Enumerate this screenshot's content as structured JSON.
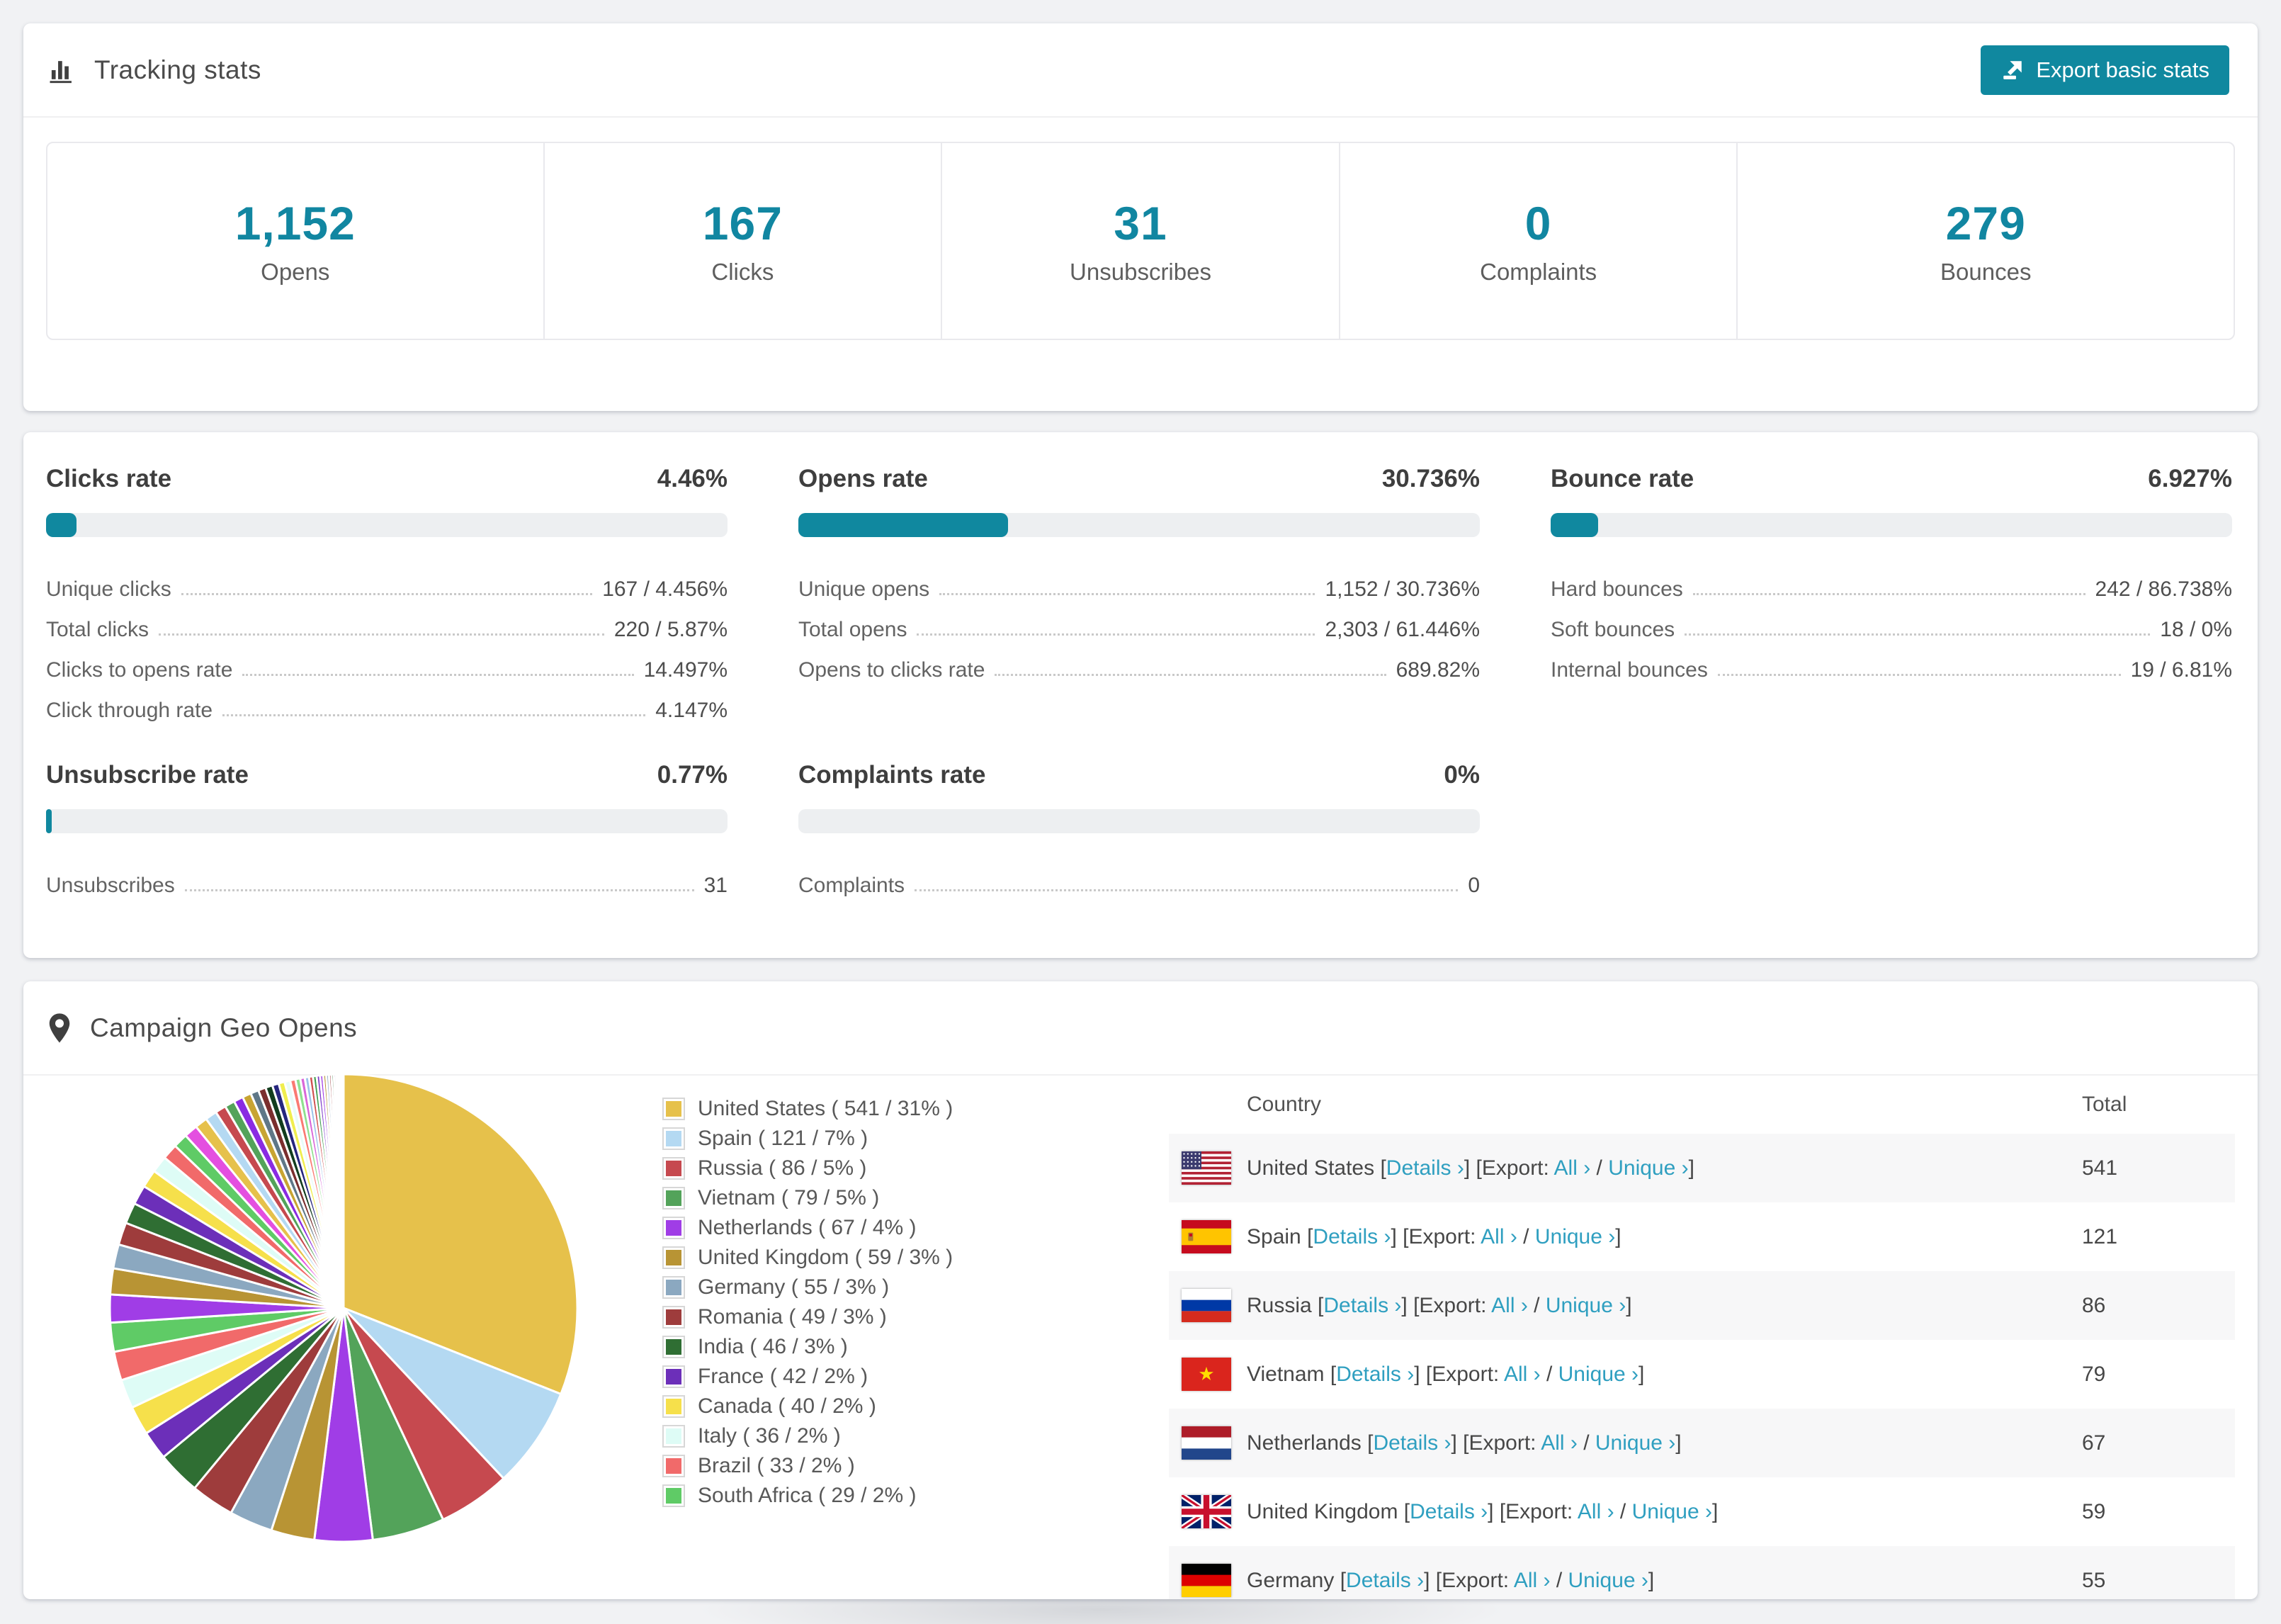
{
  "theme": {
    "accent": "#10889f",
    "stat_number_color": "#1186a1",
    "link_color": "#2f9fc0"
  },
  "tracking": {
    "title": "Tracking stats",
    "export_button_label": "Export basic stats",
    "stats": [
      {
        "value": "1,152",
        "label": "Opens"
      },
      {
        "value": "167",
        "label": "Clicks"
      },
      {
        "value": "31",
        "label": "Unsubscribes"
      },
      {
        "value": "0",
        "label": "Complaints"
      },
      {
        "value": "279",
        "label": "Bounces"
      }
    ]
  },
  "rates": [
    {
      "title": "Clicks rate",
      "value": "4.46%",
      "percent": 4.46,
      "rows": [
        {
          "label": "Unique clicks",
          "value": "167 / 4.456%"
        },
        {
          "label": "Total clicks",
          "value": "220 / 5.87%"
        },
        {
          "label": "Clicks to opens rate",
          "value": "14.497%"
        },
        {
          "label": "Click through rate",
          "value": "4.147%"
        }
      ]
    },
    {
      "title": "Opens rate",
      "value": "30.736%",
      "percent": 30.736,
      "rows": [
        {
          "label": "Unique opens",
          "value": "1,152 / 30.736%"
        },
        {
          "label": "Total opens",
          "value": "2,303 / 61.446%"
        },
        {
          "label": "Opens to clicks rate",
          "value": "689.82%"
        }
      ]
    },
    {
      "title": "Bounce rate",
      "value": "6.927%",
      "percent": 6.927,
      "rows": [
        {
          "label": "Hard bounces",
          "value": "242 / 86.738%"
        },
        {
          "label": "Soft bounces",
          "value": "18 / 0%"
        },
        {
          "label": "Internal bounces",
          "value": "19 / 6.81%"
        }
      ]
    },
    {
      "title": "Unsubscribe rate",
      "value": "0.77%",
      "percent": 0.77,
      "rows": [
        {
          "label": "Unsubscribes",
          "value": "31"
        }
      ]
    },
    {
      "title": "Complaints rate",
      "value": "0%",
      "percent": 0,
      "rows": [
        {
          "label": "Complaints",
          "value": "0"
        }
      ]
    }
  ],
  "geo": {
    "title": "Campaign Geo Opens",
    "table": {
      "columns": [
        "Country",
        "Total"
      ],
      "link_labels": {
        "details": "Details ›",
        "export_prefix": "Export:",
        "all": "All ›",
        "slash": "/",
        "unique": "Unique ›"
      },
      "rows": [
        {
          "country": "United States",
          "flag": "us",
          "total": "541"
        },
        {
          "country": "Spain",
          "flag": "es",
          "total": "121"
        },
        {
          "country": "Russia",
          "flag": "ru",
          "total": "86"
        },
        {
          "country": "Vietnam",
          "flag": "vn",
          "total": "79"
        },
        {
          "country": "Netherlands",
          "flag": "nl",
          "total": "67"
        },
        {
          "country": "United Kingdom",
          "flag": "gb",
          "total": "59"
        },
        {
          "country": "Germany",
          "flag": "de",
          "total": "55"
        }
      ]
    }
  },
  "chart_data": {
    "type": "pie",
    "title": "Campaign Geo Opens",
    "legend_position": "right",
    "start_angle_deg": -90,
    "direction": "clockwise",
    "slices": [
      {
        "name": "United States",
        "value": 541,
        "pct": 31,
        "color": "#e6c14b"
      },
      {
        "name": "Spain",
        "value": 121,
        "pct": 7,
        "color": "#b4d9f2"
      },
      {
        "name": "Russia",
        "value": 86,
        "pct": 5,
        "color": "#c6494f"
      },
      {
        "name": "Vietnam",
        "value": 79,
        "pct": 5,
        "color": "#53a35a"
      },
      {
        "name": "Netherlands",
        "value": 67,
        "pct": 4,
        "color": "#a03de6"
      },
      {
        "name": "United Kingdom",
        "value": 59,
        "pct": 3,
        "color": "#b89434"
      },
      {
        "name": "Germany",
        "value": 55,
        "pct": 3,
        "color": "#8ba8c0"
      },
      {
        "name": "Romania",
        "value": 49,
        "pct": 3,
        "color": "#9e3c3c"
      },
      {
        "name": "India",
        "value": 46,
        "pct": 3,
        "color": "#2f6e33"
      },
      {
        "name": "France",
        "value": 42,
        "pct": 2,
        "color": "#6c2fb9"
      },
      {
        "name": "Canada",
        "value": 40,
        "pct": 2,
        "color": "#f6e04b"
      },
      {
        "name": "Italy",
        "value": 36,
        "pct": 2,
        "color": "#defcf6"
      },
      {
        "name": "Brazil",
        "value": 33,
        "pct": 2,
        "color": "#f16a6a"
      },
      {
        "name": "South Africa",
        "value": 29,
        "pct": 2,
        "color": "#5fcb66"
      }
    ],
    "other_slices_total_pct": 26
  }
}
